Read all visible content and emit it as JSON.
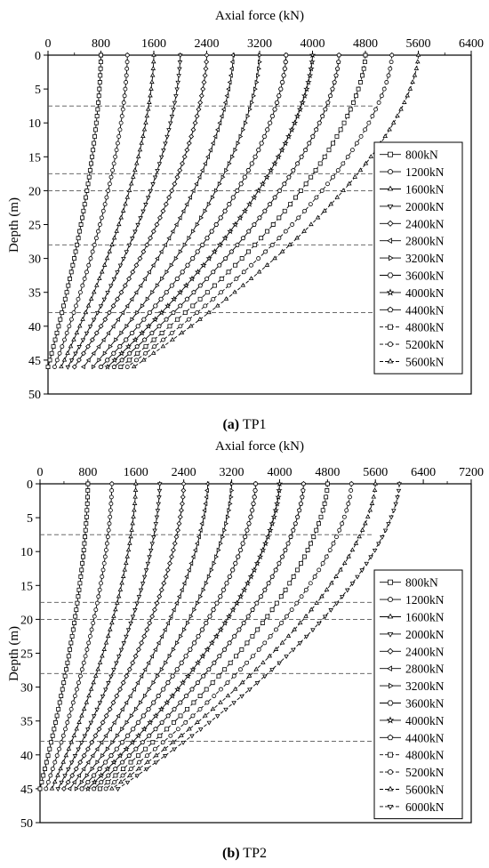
{
  "chart_data": [
    {
      "type": "line",
      "caption_letter": "(a)",
      "caption_text": "TP1",
      "xlabel": "Axial force (kN)",
      "ylabel": "Depth (m)",
      "xlim": [
        0,
        6400
      ],
      "ylim": [
        0,
        50
      ],
      "x_axis_position": "top",
      "y_inverted": true,
      "xticks": [
        "0",
        "800",
        "1600",
        "2400",
        "3200",
        "4000",
        "4800",
        "5600",
        "6400"
      ],
      "yticks": [
        "0",
        "5",
        "10",
        "15",
        "20",
        "25",
        "30",
        "35",
        "40",
        "45",
        "50"
      ],
      "layer_boundaries_depth_m": [
        7.5,
        17.5,
        20,
        28,
        38
      ],
      "pile_toe_depth_m": 46,
      "legend_position": "right",
      "series": [
        {
          "name": "800kN",
          "top_force": 800,
          "toe_force": 0,
          "marker": "square",
          "dash": false
        },
        {
          "name": "1200kN",
          "top_force": 1200,
          "toe_force": 100,
          "marker": "circle",
          "dash": false
        },
        {
          "name": "1600kN",
          "top_force": 1600,
          "toe_force": 200,
          "marker": "triangle-up",
          "dash": false
        },
        {
          "name": "2000kN",
          "top_force": 2000,
          "toe_force": 300,
          "marker": "triangle-down",
          "dash": false
        },
        {
          "name": "2400kN",
          "top_force": 2400,
          "toe_force": 400,
          "marker": "diamond",
          "dash": false
        },
        {
          "name": "2800kN",
          "top_force": 2800,
          "toe_force": 540,
          "marker": "triangle-left",
          "dash": false
        },
        {
          "name": "3200kN",
          "top_force": 3200,
          "toe_force": 680,
          "marker": "triangle-right",
          "dash": false
        },
        {
          "name": "3600kN",
          "top_force": 3600,
          "toe_force": 800,
          "marker": "hexagon",
          "dash": false
        },
        {
          "name": "4000kN",
          "top_force": 4000,
          "toe_force": 900,
          "marker": "star",
          "dash": false
        },
        {
          "name": "4400kN",
          "top_force": 4400,
          "toe_force": 1000,
          "marker": "pentagon",
          "dash": false
        },
        {
          "name": "4800kN",
          "top_force": 4800,
          "toe_force": 1100,
          "marker": "square",
          "dash": true
        },
        {
          "name": "5200kN",
          "top_force": 5200,
          "toe_force": 1200,
          "marker": "circle",
          "dash": true
        },
        {
          "name": "5600kN",
          "top_force": 5600,
          "toe_force": 1300,
          "marker": "triangle-up",
          "dash": true
        }
      ]
    },
    {
      "type": "line",
      "caption_letter": "(b)",
      "caption_text": "TP2",
      "xlabel": "Axial force (kN)",
      "ylabel": "Depth (m)",
      "xlim": [
        0,
        7200
      ],
      "ylim": [
        0,
        50
      ],
      "x_axis_position": "top",
      "y_inverted": true,
      "xticks": [
        "0",
        "800",
        "1600",
        "2400",
        "3200",
        "4000",
        "4800",
        "5600",
        "6400",
        "7200"
      ],
      "yticks": [
        "0",
        "5",
        "10",
        "15",
        "20",
        "25",
        "30",
        "35",
        "40",
        "45",
        "50"
      ],
      "layer_boundaries_depth_m": [
        7.5,
        17.5,
        20,
        28,
        38
      ],
      "pile_toe_depth_m": 45,
      "legend_position": "right",
      "series": [
        {
          "name": "800kN",
          "top_force": 800,
          "toe_force": 0,
          "marker": "square",
          "dash": false
        },
        {
          "name": "1200kN",
          "top_force": 1200,
          "toe_force": 100,
          "marker": "circle",
          "dash": false
        },
        {
          "name": "1600kN",
          "top_force": 1600,
          "toe_force": 200,
          "marker": "triangle-up",
          "dash": false
        },
        {
          "name": "2000kN",
          "top_force": 2000,
          "toe_force": 300,
          "marker": "triangle-down",
          "dash": false
        },
        {
          "name": "2400kN",
          "top_force": 2400,
          "toe_force": 400,
          "marker": "diamond",
          "dash": false
        },
        {
          "name": "2800kN",
          "top_force": 2800,
          "toe_force": 500,
          "marker": "triangle-left",
          "dash": false
        },
        {
          "name": "3200kN",
          "top_force": 3200,
          "toe_force": 600,
          "marker": "triangle-right",
          "dash": false
        },
        {
          "name": "3600kN",
          "top_force": 3600,
          "toe_force": 700,
          "marker": "hexagon",
          "dash": false
        },
        {
          "name": "4000kN",
          "top_force": 4000,
          "toe_force": 800,
          "marker": "star",
          "dash": false
        },
        {
          "name": "4400kN",
          "top_force": 4400,
          "toe_force": 900,
          "marker": "pentagon",
          "dash": false
        },
        {
          "name": "4800kN",
          "top_force": 4800,
          "toe_force": 1000,
          "marker": "square",
          "dash": true
        },
        {
          "name": "5200kN",
          "top_force": 5200,
          "toe_force": 1100,
          "marker": "circle",
          "dash": true
        },
        {
          "name": "5600kN",
          "top_force": 5600,
          "toe_force": 1200,
          "marker": "triangle-up",
          "dash": true
        },
        {
          "name": "6000kN",
          "top_force": 6000,
          "toe_force": 1300,
          "marker": "triangle-down",
          "dash": true
        }
      ]
    }
  ],
  "colors": {
    "line": "#000000",
    "marker_fill": "#ffffff",
    "boundary": "#555555",
    "background": "#ffffff"
  }
}
